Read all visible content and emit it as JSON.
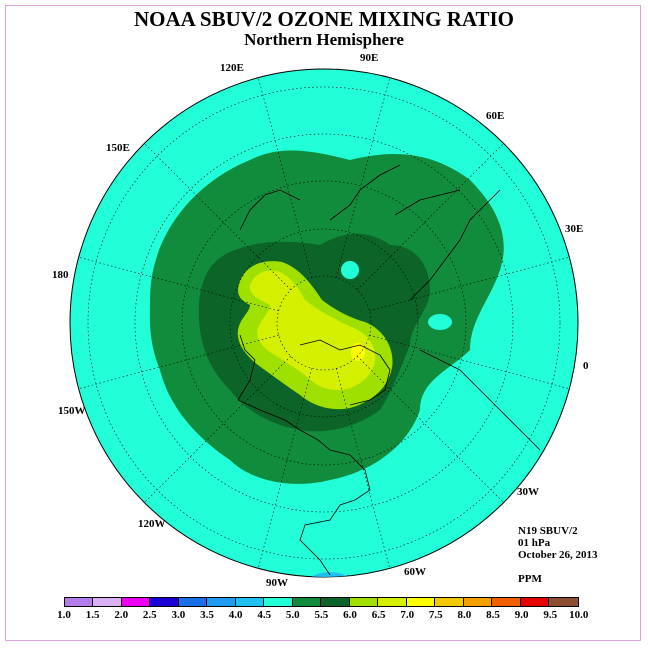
{
  "title": "NOAA SBUV/2 OZONE MIXING RATIO",
  "subtitle": "Northern Hemisphere",
  "longitude_labels": [
    "90E",
    "60E",
    "30E",
    "0",
    "30W",
    "60W",
    "90W",
    "120W",
    "150W",
    "180",
    "150E",
    "120E"
  ],
  "info": {
    "instrument": "N19 SBUV/2",
    "level": "01 hPa",
    "date": "October 26, 2013",
    "units": "PPM"
  },
  "colorbar": {
    "colors": [
      "#b57cf0",
      "#d9b0f4",
      "#f000f0",
      "#1a00d8",
      "#1a70e8",
      "#1e9cf0",
      "#20c0f0",
      "#22ffd8",
      "#118c3c",
      "#0c6428",
      "#a0e000",
      "#d4f000",
      "#ffff00",
      "#f4c800",
      "#f4a000",
      "#f06000",
      "#e60000",
      "#8c5030"
    ],
    "labels": [
      "1.0",
      "1.5",
      "2.0",
      "2.5",
      "3.0",
      "3.5",
      "4.0",
      "4.5",
      "5.0",
      "5.5",
      "6.0",
      "6.5",
      "7.0",
      "7.5",
      "8.0",
      "8.5",
      "9.0",
      "9.5",
      "10.0"
    ]
  }
}
